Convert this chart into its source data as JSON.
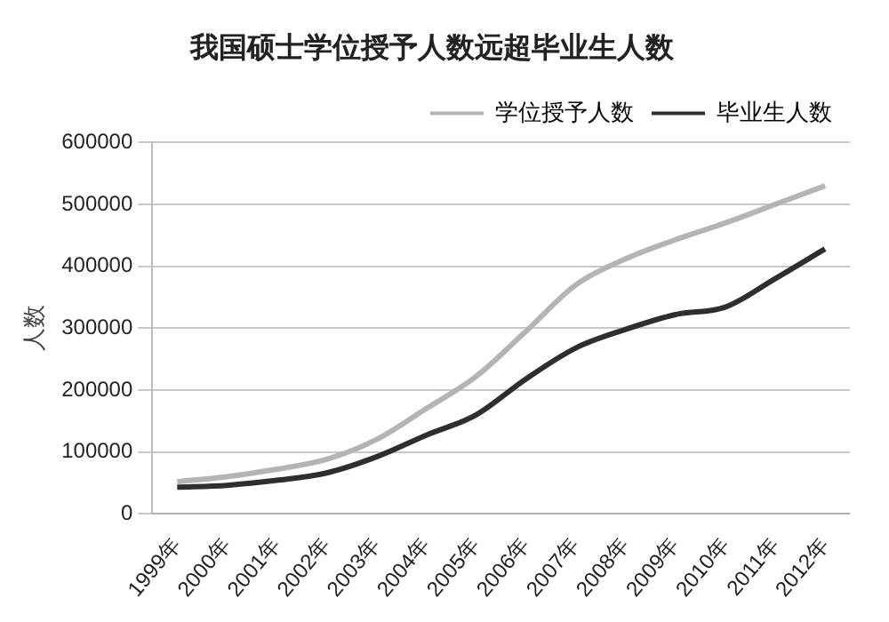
{
  "chart_data": {
    "type": "line",
    "title": "我国硕士学位授予人数远超毕业生人数",
    "ylabel": "人数",
    "categories": [
      "1999年",
      "2000年",
      "2001年",
      "2002年",
      "2003年",
      "2004年",
      "2005年",
      "2006年",
      "2007年",
      "2008年",
      "2009年",
      "2010年",
      "2011年",
      "2012年"
    ],
    "series": [
      {
        "name": "学位授予人数",
        "color": "#b4b4b4",
        "values": [
          52000,
          60000,
          72000,
          88000,
          120000,
          170000,
          222000,
          295000,
          370000,
          412000,
          443000,
          470000,
          500000,
          530000
        ]
      },
      {
        "name": "毕业生人数",
        "color": "#2e2e2e",
        "values": [
          43000,
          46000,
          54000,
          66000,
          92000,
          127000,
          160000,
          218000,
          268000,
          298000,
          322000,
          334000,
          380000,
          428000
        ]
      }
    ],
    "ylim": [
      0,
      600000
    ],
    "yticks": [
      0,
      100000,
      200000,
      300000,
      400000,
      500000,
      600000
    ],
    "grid": "y",
    "legend": "top right",
    "marker": "none",
    "line_style": "solid"
  }
}
